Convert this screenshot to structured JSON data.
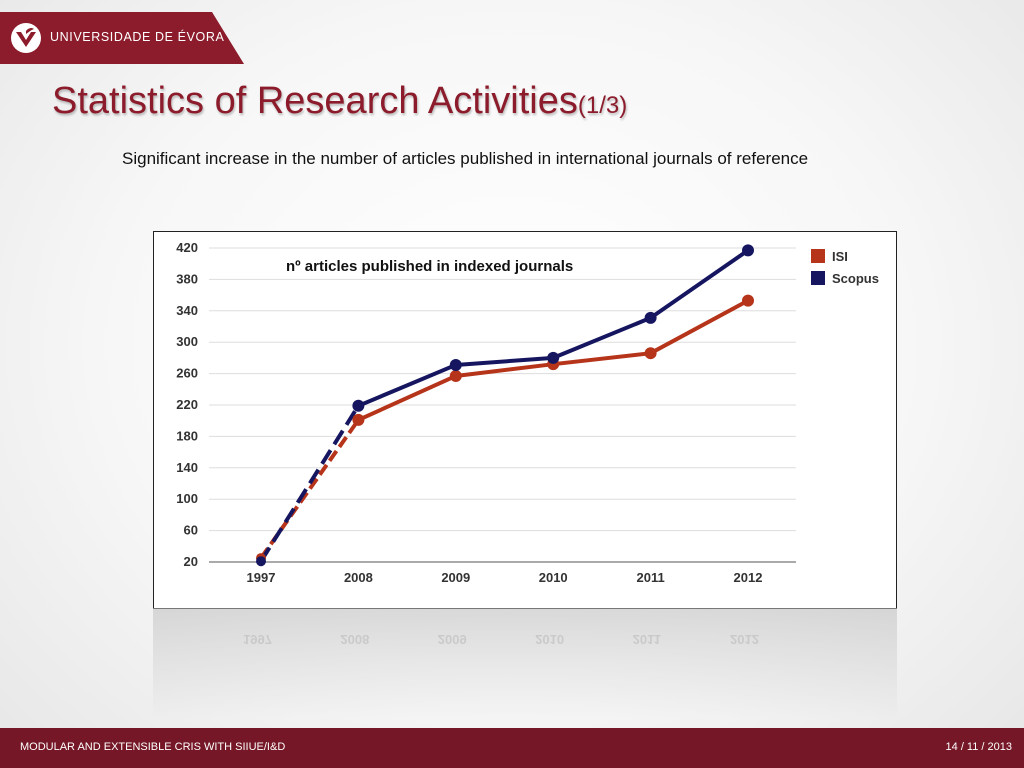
{
  "header": {
    "institution": "UNIVERSIDADE DE ÉVORA",
    "title": "Statistics of Research Activities",
    "title_suffix": "(1/3)",
    "subtitle": "Significant increase in the number of articles published in international journals of reference"
  },
  "footer": {
    "left": "MODULAR AND EXTENSIBLE CRIS WITH SIIUE/I&D",
    "right": "14 / 11 / 2013"
  },
  "colors": {
    "brand": "#8c1c2b",
    "footer": "#751726",
    "isi": "#b5341a",
    "scopus": "#161660"
  },
  "chart_data": {
    "type": "line",
    "title": "nº articles published in indexed journals",
    "categories": [
      "1997",
      "2008",
      "2009",
      "2010",
      "2011",
      "2012"
    ],
    "series": [
      {
        "name": "ISI",
        "values": [
          25,
          201,
          257,
          272,
          286,
          353
        ]
      },
      {
        "name": "Scopus",
        "values": [
          21,
          219,
          271,
          280,
          331,
          417
        ]
      }
    ],
    "yticks": [
      "20",
      "60",
      "100",
      "140",
      "180",
      "220",
      "260",
      "300",
      "340",
      "380",
      "420"
    ],
    "ylim": [
      20,
      420
    ],
    "dashed_first_segment": true,
    "grid": true,
    "legend": "right"
  }
}
